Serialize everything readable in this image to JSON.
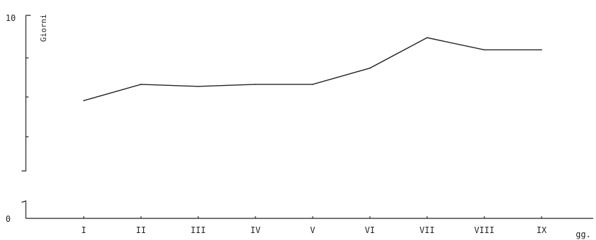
{
  "chart_data": {
    "type": "line",
    "ylabel": "Giorni",
    "xlabel": "gg.",
    "ylim": [
      0,
      10
    ],
    "y_ticks": [
      "10",
      "0"
    ],
    "categories": [
      "I",
      "II",
      "III",
      "IV",
      "V",
      "VI",
      "VII",
      "VIII",
      "IX"
    ],
    "series": [
      {
        "values": [
          5.8,
          6.6,
          6.5,
          6.6,
          6.6,
          7.4,
          8.9,
          8.3,
          8.3
        ]
      }
    ],
    "axis_break": true,
    "grid": false
  }
}
